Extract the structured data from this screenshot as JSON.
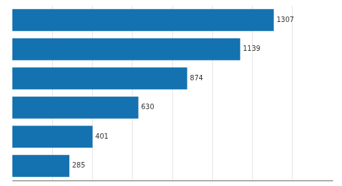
{
  "chart_data": {
    "type": "bar",
    "orientation": "horizontal",
    "categories": [
      null,
      null,
      null,
      null,
      null,
      null
    ],
    "values": [
      1307,
      1139,
      874,
      630,
      401,
      285
    ],
    "color": "#1572B0",
    "xlim": [
      0,
      1600
    ],
    "xticks": [
      200,
      400,
      600,
      800,
      1000,
      1200,
      1400
    ],
    "grid": true,
    "data_labels": true,
    "tick_labels": false
  }
}
